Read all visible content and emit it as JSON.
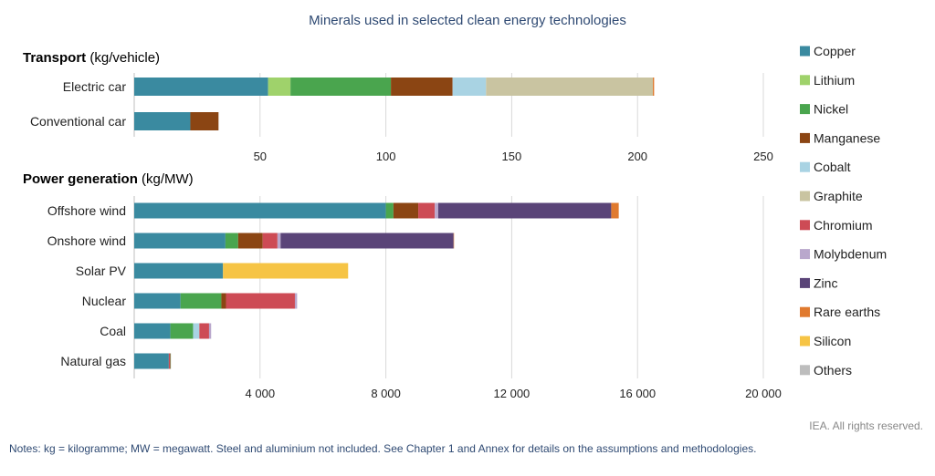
{
  "chart_data": {
    "type": "bar",
    "orientation": "horizontal",
    "stacked": true,
    "title": "Minerals used in selected clean energy technologies",
    "legend": {
      "placement": "right",
      "entries": [
        {
          "name": "Copper",
          "color": "#3a8aa0"
        },
        {
          "name": "Lithium",
          "color": "#9fd26b"
        },
        {
          "name": "Nickel",
          "color": "#4aa54e"
        },
        {
          "name": "Manganese",
          "color": "#8b4513"
        },
        {
          "name": "Cobalt",
          "color": "#a9d3e3"
        },
        {
          "name": "Graphite",
          "color": "#c9c4a1"
        },
        {
          "name": "Chromium",
          "color": "#cd4b55"
        },
        {
          "name": "Molybdenum",
          "color": "#b9a7cc"
        },
        {
          "name": "Zinc",
          "color": "#5a4478"
        },
        {
          "name": "Rare earths",
          "color": "#e07a2f"
        },
        {
          "name": "Silicon",
          "color": "#f6c445"
        },
        {
          "name": "Others",
          "color": "#bdbdbd"
        }
      ]
    },
    "panels": [
      {
        "title_bold": "Transport",
        "title_rest": " (kg/vehicle)",
        "xlim": [
          0,
          250
        ],
        "ticks": [
          50,
          100,
          150,
          200,
          250
        ],
        "tick_labels": [
          "50",
          "100",
          "150",
          "200",
          "250"
        ],
        "grid": true,
        "categories": [
          "Electric car",
          "Conventional car"
        ],
        "bars": [
          {
            "category": "Electric car",
            "segments": [
              {
                "mineral": "Copper",
                "value": 53.2
              },
              {
                "mineral": "Lithium",
                "value": 8.9
              },
              {
                "mineral": "Nickel",
                "value": 39.9
              },
              {
                "mineral": "Manganese",
                "value": 24.5
              },
              {
                "mineral": "Cobalt",
                "value": 13.3
              },
              {
                "mineral": "Graphite",
                "value": 66.3
              },
              {
                "mineral": "Rare earths",
                "value": 0.5
              }
            ]
          },
          {
            "category": "Conventional car",
            "segments": [
              {
                "mineral": "Copper",
                "value": 22.3
              },
              {
                "mineral": "Manganese",
                "value": 11.2
              }
            ]
          }
        ]
      },
      {
        "title_bold": "Power generation",
        "title_rest": " (kg/MW)",
        "xlim": [
          0,
          20000
        ],
        "ticks": [
          4000,
          8000,
          12000,
          16000,
          20000
        ],
        "tick_labels": [
          "4 000",
          "8 000",
          "12 000",
          "16 000",
          "20 000"
        ],
        "grid": true,
        "categories": [
          "Offshore wind",
          "Onshore wind",
          "Solar PV",
          "Nuclear",
          "Coal",
          "Natural gas"
        ],
        "bars": [
          {
            "category": "Offshore wind",
            "segments": [
              {
                "mineral": "Copper",
                "value": 8000
              },
              {
                "mineral": "Nickel",
                "value": 240
              },
              {
                "mineral": "Manganese",
                "value": 790
              },
              {
                "mineral": "Chromium",
                "value": 525
              },
              {
                "mineral": "Molybdenum",
                "value": 109
              },
              {
                "mineral": "Zinc",
                "value": 5500
              },
              {
                "mineral": "Rare earths",
                "value": 239
              }
            ]
          },
          {
            "category": "Onshore wind",
            "segments": [
              {
                "mineral": "Copper",
                "value": 2900
              },
              {
                "mineral": "Nickel",
                "value": 404
              },
              {
                "mineral": "Manganese",
                "value": 780
              },
              {
                "mineral": "Chromium",
                "value": 470
              },
              {
                "mineral": "Molybdenum",
                "value": 99
              },
              {
                "mineral": "Zinc",
                "value": 5500
              },
              {
                "mineral": "Rare earths",
                "value": 14
              }
            ]
          },
          {
            "category": "Solar PV",
            "segments": [
              {
                "mineral": "Copper",
                "value": 2822
              },
              {
                "mineral": "Silicon",
                "value": 3978
              }
            ]
          },
          {
            "category": "Nuclear",
            "segments": [
              {
                "mineral": "Copper",
                "value": 1473
              },
              {
                "mineral": "Nickel",
                "value": 1297
              },
              {
                "mineral": "Manganese",
                "value": 148
              },
              {
                "mineral": "Chromium",
                "value": 2190
              },
              {
                "mineral": "Molybdenum",
                "value": 70
              },
              {
                "mineral": "Others",
                "value": 0
              }
            ]
          },
          {
            "category": "Coal",
            "segments": [
              {
                "mineral": "Copper",
                "value": 1150
              },
              {
                "mineral": "Nickel",
                "value": 721
              },
              {
                "mineral": "Cobalt",
                "value": 200
              },
              {
                "mineral": "Chromium",
                "value": 308
              },
              {
                "mineral": "Molybdenum",
                "value": 66
              }
            ]
          },
          {
            "category": "Natural gas",
            "segments": [
              {
                "mineral": "Copper",
                "value": 1100
              },
              {
                "mineral": "Chromium",
                "value": 48
              },
              {
                "mineral": "Nickel",
                "value": 16
              }
            ]
          }
        ]
      }
    ]
  },
  "credit": "IEA. All rights reserved.",
  "notes": "Notes: kg = kilogramme; MW = megawatt. Steel and aluminium not included. See Chapter 1 and Annex for details on the assumptions and methodologies."
}
